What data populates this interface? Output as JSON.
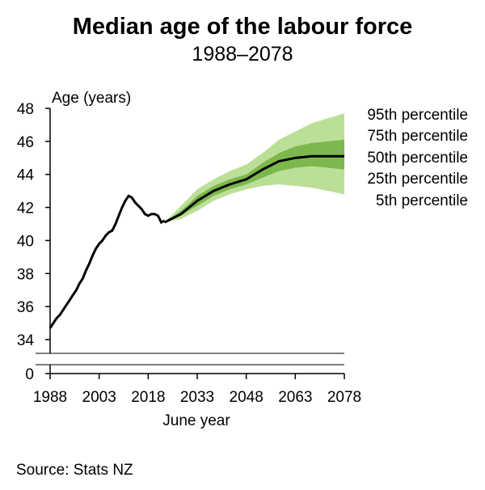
{
  "chart_data": {
    "type": "area",
    "title": "Median age of the labour force",
    "subtitle": "1988–2078",
    "ylabel": "Age (years)",
    "xlabel": "June year",
    "source": "Source: Stats NZ",
    "x_ticks": [
      "1988",
      "2003",
      "2018",
      "2033",
      "2048",
      "2063",
      "2078"
    ],
    "x_tick_values": [
      1988,
      2003,
      2018,
      2033,
      2048,
      2063,
      2078
    ],
    "y_ticks": [
      "48",
      "46",
      "44",
      "42",
      "40",
      "38",
      "36",
      "34"
    ],
    "y_tick_values": [
      48,
      46,
      44,
      42,
      40,
      38,
      36,
      34
    ],
    "y_break_tick": "0",
    "xlim": [
      1988,
      2078
    ],
    "ylim": [
      34,
      48
    ],
    "y_axis_break": true,
    "colors": {
      "line": "#000000",
      "band_5_95": "#bcdf98",
      "band_25_75": "#7cb84e",
      "axis": "#000000"
    },
    "historical": {
      "x": [
        1988,
        1989,
        1990,
        1991,
        1992,
        1993,
        1994,
        1995,
        1996,
        1997,
        1998,
        1999,
        2000,
        2001,
        2002,
        2003,
        2004,
        2005,
        2006,
        2007,
        2008,
        2009,
        2010,
        2011,
        2012,
        2013,
        2014,
        2015,
        2016,
        2017,
        2018,
        2019,
        2020,
        2021,
        2022,
        2023
      ],
      "y": [
        34.7,
        35.0,
        35.3,
        35.5,
        35.8,
        36.1,
        36.4,
        36.7,
        37.0,
        37.4,
        37.7,
        38.2,
        38.6,
        39.1,
        39.5,
        39.8,
        40.0,
        40.3,
        40.5,
        40.6,
        41.0,
        41.5,
        42.0,
        42.4,
        42.7,
        42.6,
        42.3,
        42.1,
        41.9,
        41.6,
        41.5,
        41.6,
        41.6,
        41.5,
        41.1,
        41.2
      ]
    },
    "projection": {
      "x": [
        2023,
        2028,
        2033,
        2038,
        2043,
        2048,
        2053,
        2058,
        2063,
        2068,
        2073,
        2078
      ],
      "p5": [
        41.1,
        41.3,
        41.8,
        42.4,
        42.8,
        43.1,
        43.3,
        43.4,
        43.3,
        43.2,
        43.0,
        42.8
      ],
      "p25": [
        41.1,
        41.5,
        42.1,
        42.7,
        43.1,
        43.4,
        43.8,
        44.2,
        44.4,
        44.5,
        44.4,
        44.3
      ],
      "p50": [
        41.1,
        41.6,
        42.4,
        43.0,
        43.4,
        43.7,
        44.3,
        44.8,
        45.0,
        45.1,
        45.1,
        45.1
      ],
      "p75": [
        41.1,
        41.8,
        42.7,
        43.3,
        43.7,
        44.0,
        44.7,
        45.3,
        45.7,
        45.9,
        46.0,
        46.1
      ],
      "p95": [
        41.1,
        42.1,
        43.1,
        43.7,
        44.2,
        44.6,
        45.3,
        46.1,
        46.6,
        47.1,
        47.4,
        47.7
      ]
    },
    "band_labels": [
      "95th percentile",
      "75th percentile",
      "50th percentile",
      "25th percentile",
      "5th percentile"
    ]
  }
}
